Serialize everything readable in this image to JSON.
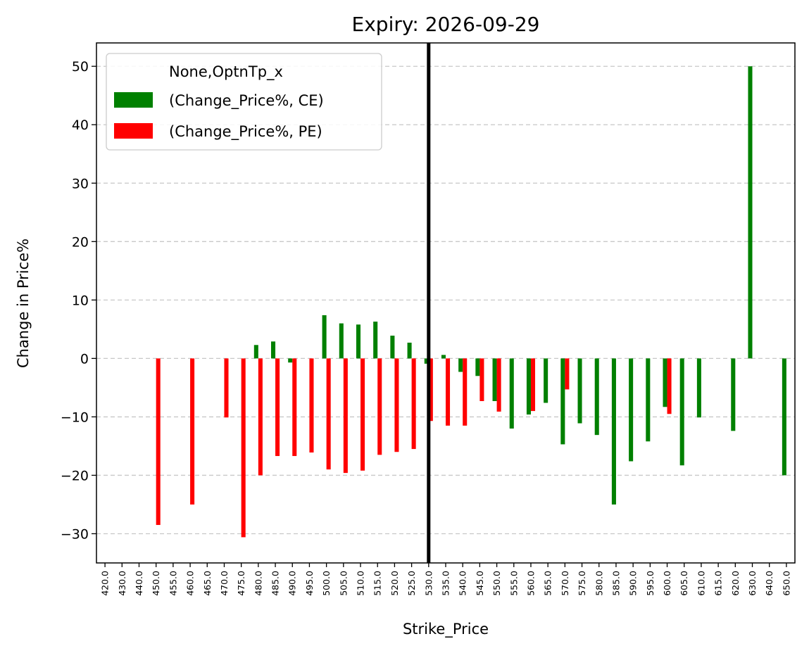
{
  "chart_data": {
    "type": "bar",
    "title": "Expiry: 2026-09-29",
    "xlabel": "Strike_Price",
    "ylabel": "Change in Price%",
    "ylim": [
      -35,
      54
    ],
    "yticks": [
      -30,
      -20,
      -10,
      0,
      10,
      20,
      30,
      40,
      50
    ],
    "ytick_labels": [
      "−30",
      "−20",
      "−10",
      "0",
      "10",
      "20",
      "30",
      "40",
      "50"
    ],
    "grid": "y-dashed",
    "legend": {
      "placement": "top-left",
      "title": "None,OptnTp_x",
      "entries": [
        "(Change_Price%, CE)",
        "(Change_Price%, PE)"
      ]
    },
    "vertical_marker": {
      "category": "530.0",
      "color": "#000000"
    },
    "categories": [
      "420.0",
      "430.0",
      "440.0",
      "450.0",
      "455.0",
      "460.0",
      "465.0",
      "470.0",
      "475.0",
      "480.0",
      "485.0",
      "490.0",
      "495.0",
      "500.0",
      "505.0",
      "510.0",
      "515.0",
      "520.0",
      "525.0",
      "530.0",
      "535.0",
      "540.0",
      "545.0",
      "550.0",
      "555.0",
      "560.0",
      "565.0",
      "570.0",
      "575.0",
      "580.0",
      "585.0",
      "590.0",
      "595.0",
      "600.0",
      "605.0",
      "610.0",
      "615.0",
      "620.0",
      "630.0",
      "640.0",
      "650.0"
    ],
    "series": [
      {
        "name": "(Change_Price%, CE)",
        "color": "#008000",
        "values": [
          null,
          null,
          null,
          null,
          null,
          null,
          null,
          null,
          null,
          2.3,
          2.9,
          -0.7,
          null,
          7.4,
          6.0,
          5.8,
          6.3,
          3.9,
          2.7,
          -0.9,
          0.6,
          -2.3,
          -3.0,
          -7.3,
          -12.0,
          -9.6,
          -7.6,
          -14.7,
          -11.1,
          -13.1,
          -25.0,
          -17.6,
          -14.2,
          -8.3,
          -18.3,
          -10.1,
          null,
          -12.4,
          50.0,
          null,
          -20.0
        ]
      },
      {
        "name": "(Change_Price%, PE)",
        "color": "#ff0000",
        "values": [
          null,
          null,
          null,
          -28.5,
          null,
          -25.0,
          null,
          -10.1,
          -30.6,
          -20.0,
          -16.7,
          -16.7,
          -16.1,
          -19.0,
          -19.6,
          -19.2,
          -16.5,
          -16.0,
          -15.5,
          -10.7,
          -11.5,
          -11.5,
          -7.3,
          -9.1,
          null,
          -9.0,
          null,
          -5.3,
          null,
          null,
          null,
          null,
          null,
          -9.5,
          null,
          null,
          null,
          null,
          null,
          null,
          null
        ]
      }
    ]
  }
}
